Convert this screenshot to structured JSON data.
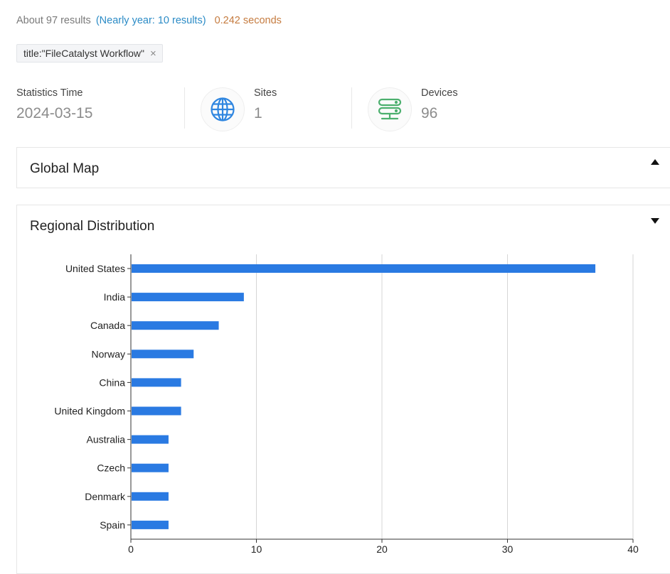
{
  "results": {
    "count_text": "About 97 results",
    "nearly_text": "(Nearly year: 10 results)",
    "time_text": "0.242 seconds"
  },
  "filter": {
    "label": "title:\"FileCatalyst Workflow\"",
    "close_glyph": "×"
  },
  "stats": {
    "time_label": "Statistics Time",
    "time_value": "2024-03-15",
    "sites_label": "Sites",
    "sites_value": "1",
    "sites_icon": "globe-icon",
    "devices_label": "Devices",
    "devices_value": "96",
    "devices_icon": "server-icon"
  },
  "panels": {
    "global_map": "Global Map",
    "regional": "Regional Distribution"
  },
  "colors": {
    "bar": "#2a7ae2",
    "globe": "#2f86e0",
    "server": "#4caf6e"
  },
  "chart_data": {
    "type": "bar",
    "orientation": "horizontal",
    "categories": [
      "United States",
      "India",
      "Canada",
      "Norway",
      "China",
      "United Kingdom",
      "Australia",
      "Czech",
      "Denmark",
      "Spain"
    ],
    "values": [
      37,
      9,
      7,
      5,
      4,
      4,
      3,
      3,
      3,
      3
    ],
    "xlim": [
      0,
      40
    ],
    "xticks": [
      "0",
      "10",
      "20",
      "30",
      "40"
    ],
    "grid": true
  }
}
